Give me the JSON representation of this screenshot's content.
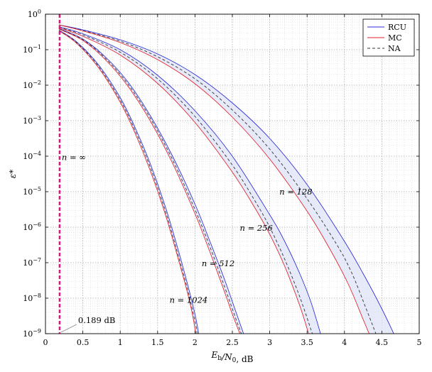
{
  "chart_data": {
    "type": "line",
    "xlabel": "E_b/N_0, dB",
    "ylabel": "ε*",
    "xlim": [
      0,
      5
    ],
    "ylim_log10": [
      -9,
      0
    ],
    "y_scale": "log",
    "grid": true,
    "legend_placement": "top-right",
    "x_ticks": [
      "0",
      "0.5",
      "1",
      "1.5",
      "2",
      "2.5",
      "3",
      "3.5",
      "4",
      "4.5",
      "5"
    ],
    "y_tick_exponents": [
      "0",
      "−1",
      "−2",
      "−3",
      "−4",
      "−5",
      "−6",
      "−7",
      "−8",
      "−9"
    ],
    "legend": [
      {
        "label": "RCU",
        "color": "#2b2bd8",
        "style": "solid"
      },
      {
        "label": "MC",
        "color": "#e0202a",
        "style": "solid"
      },
      {
        "label": "NA",
        "color": "#333333",
        "style": "dashed"
      }
    ],
    "colors": {
      "rcu": "#2b2bd8",
      "mc": "#e0202a",
      "na": "#333333",
      "limit": "#e0157a",
      "band": "#dfe3f7"
    },
    "limit_line": {
      "x": 0.189,
      "label_inf": "n = ∞",
      "label_value": "0.189 dB"
    },
    "n_labels": [
      {
        "text": "n = 128",
        "x": 3.13,
        "y_log10": -5.0
      },
      {
        "text": "n = 256",
        "x": 2.6,
        "y_log10": -6.02
      },
      {
        "text": "n = 512",
        "x": 2.09,
        "y_log10": -7.02
      },
      {
        "text": "n = 1024",
        "x": 1.66,
        "y_log10": -8.05
      }
    ],
    "series": [
      {
        "family": "n=128",
        "kind": "RCU",
        "points": [
          [
            0.18,
            -0.3
          ],
          [
            0.5,
            -0.44
          ],
          [
            1,
            -0.72
          ],
          [
            1.5,
            -1.12
          ],
          [
            2,
            -1.7
          ],
          [
            2.5,
            -2.5
          ],
          [
            3,
            -3.5
          ],
          [
            3.5,
            -4.8
          ],
          [
            4,
            -6.4
          ],
          [
            4.3,
            -7.5
          ],
          [
            4.5,
            -8.3
          ],
          [
            4.66,
            -9
          ]
        ]
      },
      {
        "family": "n=128",
        "kind": "NA",
        "points": [
          [
            0.18,
            -0.3
          ],
          [
            0.5,
            -0.46
          ],
          [
            1,
            -0.76
          ],
          [
            1.5,
            -1.2
          ],
          [
            2,
            -1.82
          ],
          [
            2.5,
            -2.7
          ],
          [
            3,
            -3.8
          ],
          [
            3.5,
            -5.2
          ],
          [
            3.9,
            -6.5
          ],
          [
            4.1,
            -7.3
          ],
          [
            4.3,
            -8.35
          ],
          [
            4.42,
            -9
          ]
        ]
      },
      {
        "family": "n=128",
        "kind": "MC",
        "points": [
          [
            0.18,
            -0.3
          ],
          [
            0.5,
            -0.47
          ],
          [
            1,
            -0.8
          ],
          [
            1.5,
            -1.28
          ],
          [
            2,
            -1.96
          ],
          [
            2.5,
            -2.9
          ],
          [
            3,
            -4.08
          ],
          [
            3.5,
            -5.55
          ],
          [
            3.8,
            -6.6
          ],
          [
            4.05,
            -7.6
          ],
          [
            4.25,
            -8.6
          ],
          [
            4.33,
            -9
          ]
        ]
      },
      {
        "family": "n=256",
        "kind": "RCU",
        "points": [
          [
            0.18,
            -0.35
          ],
          [
            0.5,
            -0.55
          ],
          [
            1,
            -1.0
          ],
          [
            1.5,
            -1.72
          ],
          [
            2,
            -2.72
          ],
          [
            2.5,
            -4.0
          ],
          [
            3,
            -5.65
          ],
          [
            3.2,
            -6.4
          ],
          [
            3.4,
            -7.3
          ],
          [
            3.55,
            -8.1
          ],
          [
            3.68,
            -9
          ]
        ]
      },
      {
        "family": "n=256",
        "kind": "NA",
        "points": [
          [
            0.18,
            -0.37
          ],
          [
            0.5,
            -0.58
          ],
          [
            1,
            -1.07
          ],
          [
            1.5,
            -1.82
          ],
          [
            2,
            -2.88
          ],
          [
            2.5,
            -4.25
          ],
          [
            2.8,
            -5.25
          ],
          [
            3,
            -6.0
          ],
          [
            3.2,
            -6.9
          ],
          [
            3.4,
            -7.95
          ],
          [
            3.57,
            -9
          ]
        ]
      },
      {
        "family": "n=256",
        "kind": "MC",
        "points": [
          [
            0.18,
            -0.38
          ],
          [
            0.5,
            -0.62
          ],
          [
            1,
            -1.15
          ],
          [
            1.5,
            -1.95
          ],
          [
            2,
            -3.05
          ],
          [
            2.5,
            -4.45
          ],
          [
            2.8,
            -5.45
          ],
          [
            3,
            -6.2
          ],
          [
            3.2,
            -7.1
          ],
          [
            3.4,
            -8.2
          ],
          [
            3.52,
            -9
          ]
        ]
      },
      {
        "family": "n=512",
        "kind": "RCU",
        "points": [
          [
            0.18,
            -0.4
          ],
          [
            0.5,
            -0.7
          ],
          [
            0.8,
            -1.2
          ],
          [
            1.1,
            -1.9
          ],
          [
            1.4,
            -2.85
          ],
          [
            1.7,
            -4.0
          ],
          [
            2,
            -5.35
          ],
          [
            2.2,
            -6.4
          ],
          [
            2.4,
            -7.5
          ],
          [
            2.55,
            -8.4
          ],
          [
            2.65,
            -9
          ]
        ]
      },
      {
        "family": "n=512",
        "kind": "NA",
        "points": [
          [
            0.18,
            -0.41
          ],
          [
            0.5,
            -0.72
          ],
          [
            0.8,
            -1.24
          ],
          [
            1.1,
            -1.96
          ],
          [
            1.4,
            -2.92
          ],
          [
            1.7,
            -4.1
          ],
          [
            2,
            -5.5
          ],
          [
            2.2,
            -6.55
          ],
          [
            2.4,
            -7.7
          ],
          [
            2.55,
            -8.6
          ],
          [
            2.62,
            -9
          ]
        ]
      },
      {
        "family": "n=512",
        "kind": "MC",
        "points": [
          [
            0.18,
            -0.42
          ],
          [
            0.5,
            -0.74
          ],
          [
            0.8,
            -1.28
          ],
          [
            1.1,
            -2.02
          ],
          [
            1.4,
            -3.0
          ],
          [
            1.7,
            -4.2
          ],
          [
            2,
            -5.62
          ],
          [
            2.2,
            -6.7
          ],
          [
            2.4,
            -7.85
          ],
          [
            2.5,
            -8.45
          ],
          [
            2.6,
            -9
          ]
        ]
      },
      {
        "family": "n=1024",
        "kind": "RCU",
        "points": [
          [
            0.18,
            -0.45
          ],
          [
            0.4,
            -0.75
          ],
          [
            0.7,
            -1.4
          ],
          [
            1.0,
            -2.35
          ],
          [
            1.2,
            -3.2
          ],
          [
            1.4,
            -4.2
          ],
          [
            1.6,
            -5.4
          ],
          [
            1.75,
            -6.45
          ],
          [
            1.9,
            -7.6
          ],
          [
            2.0,
            -8.45
          ],
          [
            2.05,
            -9
          ]
        ]
      },
      {
        "family": "n=1024",
        "kind": "NA",
        "points": [
          [
            0.18,
            -0.46
          ],
          [
            0.4,
            -0.77
          ],
          [
            0.7,
            -1.44
          ],
          [
            1.0,
            -2.42
          ],
          [
            1.2,
            -3.28
          ],
          [
            1.4,
            -4.3
          ],
          [
            1.6,
            -5.52
          ],
          [
            1.75,
            -6.6
          ],
          [
            1.9,
            -7.75
          ],
          [
            2.0,
            -8.65
          ],
          [
            2.03,
            -9
          ]
        ]
      },
      {
        "family": "n=1024",
        "kind": "MC",
        "points": [
          [
            0.18,
            -0.47
          ],
          [
            0.4,
            -0.79
          ],
          [
            0.7,
            -1.48
          ],
          [
            1.0,
            -2.48
          ],
          [
            1.2,
            -3.36
          ],
          [
            1.4,
            -4.4
          ],
          [
            1.6,
            -5.62
          ],
          [
            1.75,
            -6.7
          ],
          [
            1.9,
            -7.85
          ],
          [
            1.97,
            -8.5
          ],
          [
            2.01,
            -9
          ]
        ]
      }
    ]
  }
}
